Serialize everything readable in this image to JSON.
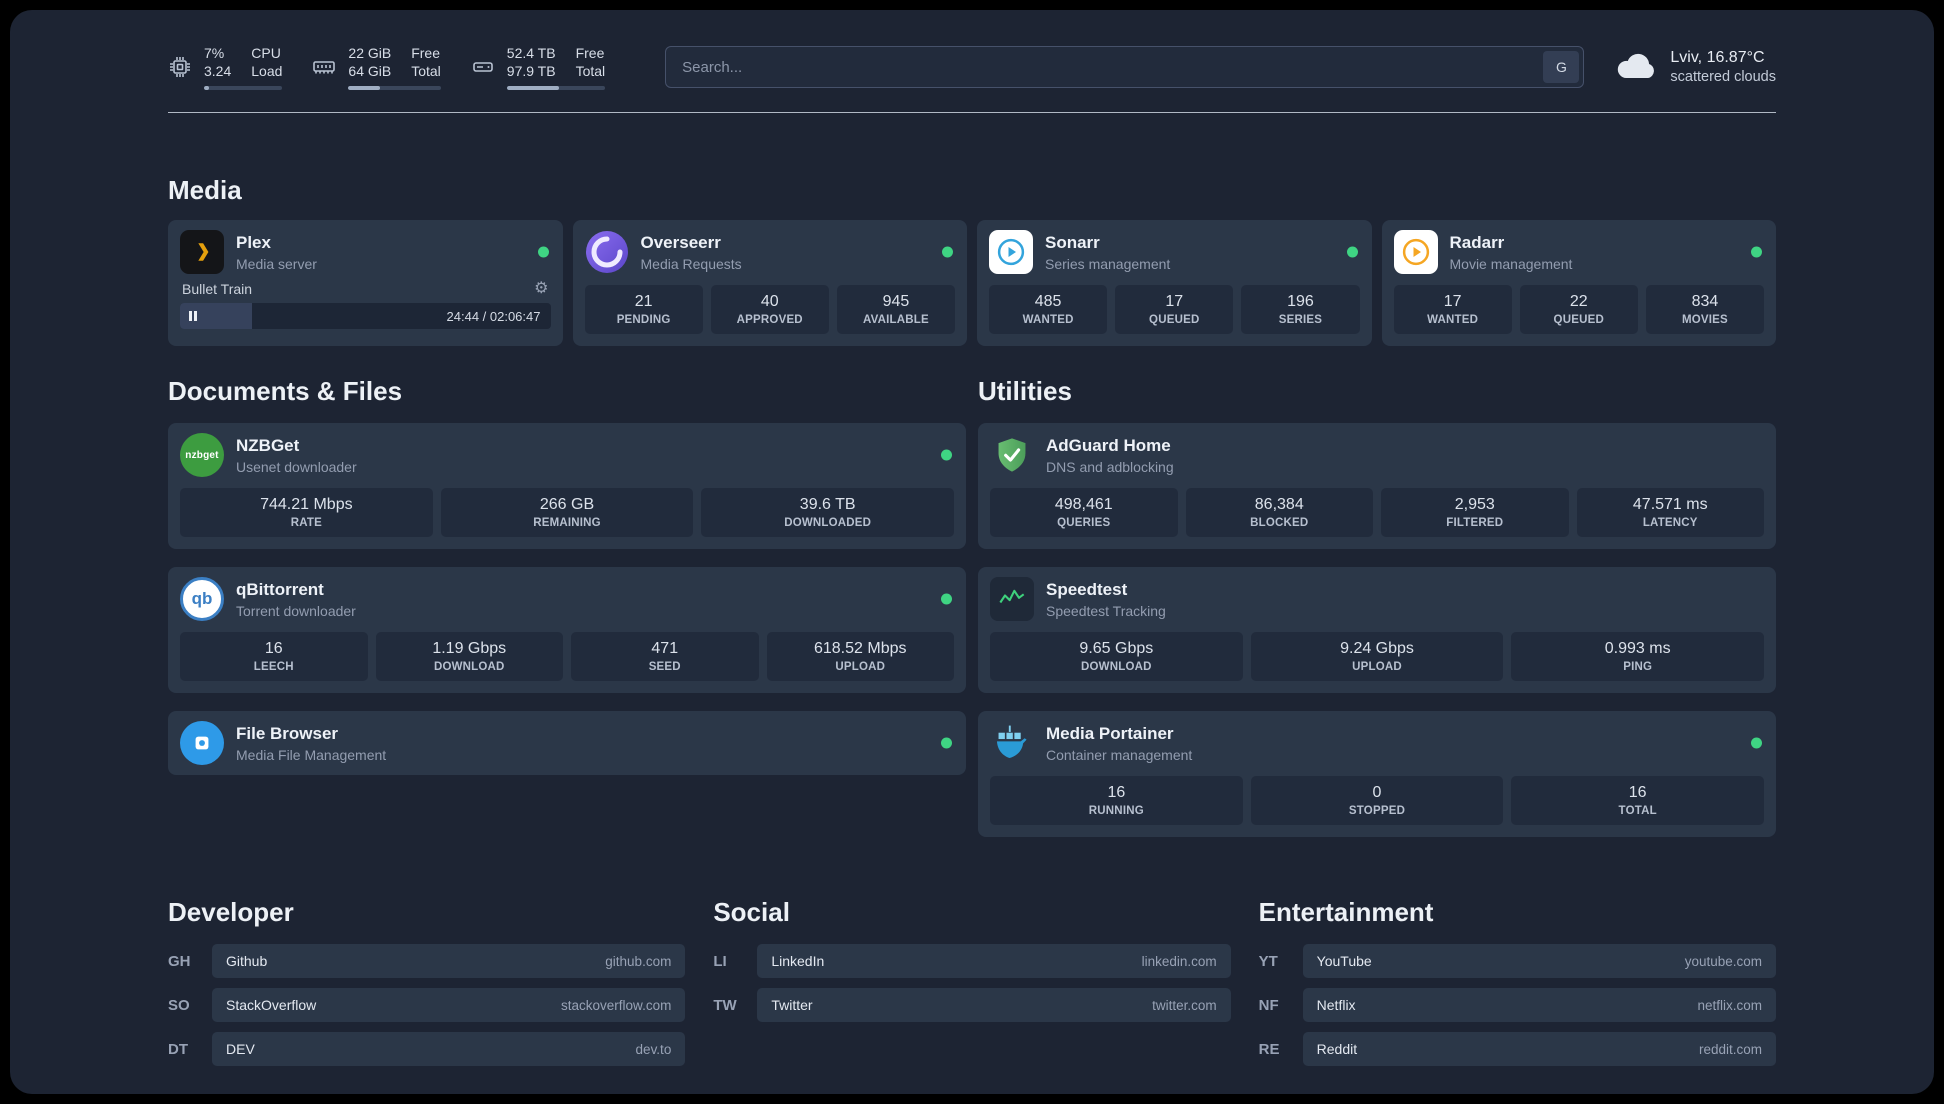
{
  "topbar": {
    "cpu": {
      "icon": "cpu-icon",
      "primary": "7%",
      "secondary": "3.24",
      "label_primary": "CPU",
      "label_secondary": "Load",
      "progress": 7
    },
    "ram": {
      "icon": "ram-icon",
      "primary": "22 GiB",
      "secondary": "64 GiB",
      "label_primary": "Free",
      "label_secondary": "Total",
      "progress": 34
    },
    "disk": {
      "icon": "disk-icon",
      "primary": "52.4 TB",
      "secondary": "97.9 TB",
      "label_primary": "Free",
      "label_secondary": "Total",
      "progress": 53
    },
    "search": {
      "placeholder": "Search...",
      "engine_label": "G"
    },
    "weather": {
      "icon": "cloud-icon",
      "location": "Lviv, 16.87°C",
      "condition": "scattered clouds"
    }
  },
  "media": {
    "title": "Media",
    "plex": {
      "name": "Plex",
      "subtitle": "Media server",
      "now_playing": "Bullet Train",
      "time": "24:44 / 02:06:47",
      "progress": 19.5
    },
    "overseerr": {
      "name": "Overseerr",
      "subtitle": "Media Requests",
      "stats": [
        {
          "value": "21",
          "label": "PENDING"
        },
        {
          "value": "40",
          "label": "APPROVED"
        },
        {
          "value": "945",
          "label": "AVAILABLE"
        }
      ]
    },
    "sonarr": {
      "name": "Sonarr",
      "subtitle": "Series management",
      "stats": [
        {
          "value": "485",
          "label": "WANTED"
        },
        {
          "value": "17",
          "label": "QUEUED"
        },
        {
          "value": "196",
          "label": "SERIES"
        }
      ]
    },
    "radarr": {
      "name": "Radarr",
      "subtitle": "Movie management",
      "stats": [
        {
          "value": "17",
          "label": "WANTED"
        },
        {
          "value": "22",
          "label": "QUEUED"
        },
        {
          "value": "834",
          "label": "MOVIES"
        }
      ]
    }
  },
  "documents": {
    "title": "Documents & Files",
    "nzbget": {
      "name": "NZBGet",
      "subtitle": "Usenet downloader",
      "stats": [
        {
          "value": "744.21 Mbps",
          "label": "RATE"
        },
        {
          "value": "266 GB",
          "label": "REMAINING"
        },
        {
          "value": "39.6 TB",
          "label": "DOWNLOADED"
        }
      ]
    },
    "qbittorrent": {
      "name": "qBittorrent",
      "subtitle": "Torrent downloader",
      "stats": [
        {
          "value": "16",
          "label": "LEECH"
        },
        {
          "value": "1.19 Gbps",
          "label": "DOWNLOAD"
        },
        {
          "value": "471",
          "label": "SEED"
        },
        {
          "value": "618.52 Mbps",
          "label": "UPLOAD"
        }
      ]
    },
    "filebrowser": {
      "name": "File Browser",
      "subtitle": "Media File Management"
    }
  },
  "utilities": {
    "title": "Utilities",
    "adguard": {
      "name": "AdGuard Home",
      "subtitle": "DNS and adblocking",
      "stats": [
        {
          "value": "498,461",
          "label": "QUERIES"
        },
        {
          "value": "86,384",
          "label": "BLOCKED"
        },
        {
          "value": "2,953",
          "label": "FILTERED"
        },
        {
          "value": "47.571 ms",
          "label": "LATENCY"
        }
      ]
    },
    "speedtest": {
      "name": "Speedtest",
      "subtitle": "Speedtest Tracking",
      "stats": [
        {
          "value": "9.65 Gbps",
          "label": "DOWNLOAD"
        },
        {
          "value": "9.24 Gbps",
          "label": "UPLOAD"
        },
        {
          "value": "0.993 ms",
          "label": "PING"
        }
      ]
    },
    "portainer": {
      "name": "Media Portainer",
      "subtitle": "Container management",
      "stats": [
        {
          "value": "16",
          "label": "RUNNING"
        },
        {
          "value": "0",
          "label": "STOPPED"
        },
        {
          "value": "16",
          "label": "TOTAL"
        }
      ]
    }
  },
  "bookmarks": {
    "developer": {
      "title": "Developer",
      "links": [
        {
          "abbr": "GH",
          "name": "Github",
          "url": "github.com"
        },
        {
          "abbr": "SO",
          "name": "StackOverflow",
          "url": "stackoverflow.com"
        },
        {
          "abbr": "DT",
          "name": "DEV",
          "url": "dev.to"
        }
      ]
    },
    "social": {
      "title": "Social",
      "links": [
        {
          "abbr": "LI",
          "name": "LinkedIn",
          "url": "linkedin.com"
        },
        {
          "abbr": "TW",
          "name": "Twitter",
          "url": "twitter.com"
        }
      ]
    },
    "entertainment": {
      "title": "Entertainment",
      "links": [
        {
          "abbr": "YT",
          "name": "YouTube",
          "url": "youtube.com"
        },
        {
          "abbr": "NF",
          "name": "Netflix",
          "url": "netflix.com"
        },
        {
          "abbr": "RE",
          "name": "Reddit",
          "url": "reddit.com"
        }
      ]
    }
  },
  "status": {
    "online_color": "#3fd483"
  }
}
